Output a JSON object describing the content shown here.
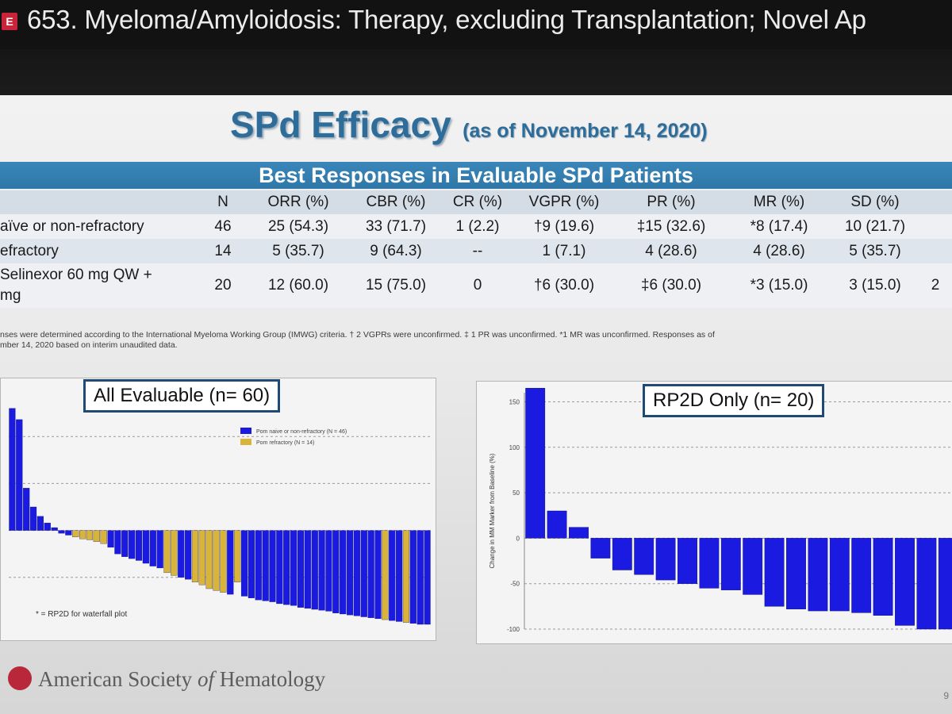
{
  "window": {
    "badge": "E",
    "title": "653. Myeloma/Amyloidosis: Therapy, excluding Transplantation; Novel Ap"
  },
  "slide": {
    "title": "SPd Efficacy",
    "subtitle": "(as of November 14, 2020)",
    "table_title": "Best Responses in Evaluable SPd Patients",
    "columns": [
      "N",
      "ORR (%)",
      "CBR (%)",
      "CR (%)",
      "VGPR (%)",
      "PR (%)",
      "MR (%)",
      "SD (%)"
    ],
    "rows": [
      {
        "label": "aïve or non-refractory",
        "label2": "",
        "cells": [
          "46",
          "25 (54.3)",
          "33 (71.7)",
          "1 (2.2)",
          "†9 (19.6)",
          "‡15 (32.6)",
          "*8 (17.4)",
          "10 (21.7)"
        ]
      },
      {
        "label": "efractory",
        "label2": "",
        "cells": [
          "14",
          "5 (35.7)",
          "9 (64.3)",
          "--",
          "1 (7.1)",
          "4 (28.6)",
          "4 (28.6)",
          "5 (35.7)"
        ]
      },
      {
        "label": "Selinexor 60 mg QW +",
        "label2": "mg",
        "cells": [
          "20",
          "12 (60.0)",
          "15 (75.0)",
          "0",
          "†6 (30.0)",
          "‡6 (30.0)",
          "*3 (15.0)",
          "3 (15.0)"
        ]
      }
    ],
    "extra_col_marks": [
      "",
      "",
      "2"
    ],
    "footnote_1": "nses were determined according to the International Myeloma Working Group (IMWG) criteria. † 2 VGPRs were unconfirmed. ‡ 1 PR was unconfirmed. *1 MR was unconfirmed. Responses as of",
    "footnote_2": "mber 14, 2020 based on interim unaudited data.",
    "callout_left": "All Evaluable (n= 60)",
    "callout_right": "RP2D Only (n= 20)",
    "legend_naive": "Pom naive or non-refractory (N = 46)",
    "legend_refractory": "Pom refractory (N = 14)",
    "rp2d_note": "* = RP2D for waterfall plot",
    "right_ylabel": "Change in MM Marker from Baseline (%)",
    "right_yticks": [
      "150",
      "100",
      "50",
      "0",
      "-50",
      "-100"
    ],
    "org": {
      "part1": "American Society ",
      "part2": "of",
      "part3": " Hematology"
    },
    "page_number": "9"
  },
  "colors": {
    "naive": "#1a1ae0",
    "refractory": "#d9b43a",
    "accent": "#2e6d9a"
  },
  "chart_data": [
    {
      "type": "bar",
      "title": "All Evaluable (n= 60)",
      "ylabel": "",
      "ylim": [
        -100,
        150
      ],
      "series": [
        {
          "name": "Pom naive or non-refractory (N = 46)",
          "values": []
        },
        {
          "name": "Pom refractory (N = 14)",
          "values": []
        }
      ],
      "bars": [
        {
          "v": 130,
          "g": 0
        },
        {
          "v": 118,
          "g": 0
        },
        {
          "v": 45,
          "g": 0
        },
        {
          "v": 25,
          "g": 0
        },
        {
          "v": 15,
          "g": 0
        },
        {
          "v": 8,
          "g": 0
        },
        {
          "v": 3,
          "g": 0
        },
        {
          "v": -3,
          "g": 0
        },
        {
          "v": -5,
          "g": 0
        },
        {
          "v": -7,
          "g": 1
        },
        {
          "v": -9,
          "g": 1
        },
        {
          "v": -10,
          "g": 1
        },
        {
          "v": -12,
          "g": 1
        },
        {
          "v": -14,
          "g": 1
        },
        {
          "v": -18,
          "g": 0
        },
        {
          "v": -25,
          "g": 0
        },
        {
          "v": -28,
          "g": 0
        },
        {
          "v": -30,
          "g": 0
        },
        {
          "v": -32,
          "g": 0
        },
        {
          "v": -35,
          "g": 0
        },
        {
          "v": -38,
          "g": 0
        },
        {
          "v": -40,
          "g": 0
        },
        {
          "v": -45,
          "g": 1
        },
        {
          "v": -48,
          "g": 1
        },
        {
          "v": -50,
          "g": 0
        },
        {
          "v": -52,
          "g": 0
        },
        {
          "v": -55,
          "g": 1
        },
        {
          "v": -58,
          "g": 1
        },
        {
          "v": -62,
          "g": 1
        },
        {
          "v": -64,
          "g": 1
        },
        {
          "v": -66,
          "g": 1
        },
        {
          "v": -68,
          "g": 0
        },
        {
          "v": -55,
          "g": 1
        },
        {
          "v": -70,
          "g": 0
        },
        {
          "v": -72,
          "g": 0
        },
        {
          "v": -74,
          "g": 0
        },
        {
          "v": -75,
          "g": 0
        },
        {
          "v": -76,
          "g": 0
        },
        {
          "v": -78,
          "g": 0
        },
        {
          "v": -79,
          "g": 0
        },
        {
          "v": -80,
          "g": 0
        },
        {
          "v": -82,
          "g": 0
        },
        {
          "v": -83,
          "g": 0
        },
        {
          "v": -84,
          "g": 0
        },
        {
          "v": -85,
          "g": 0
        },
        {
          "v": -86,
          "g": 0
        },
        {
          "v": -88,
          "g": 0
        },
        {
          "v": -89,
          "g": 0
        },
        {
          "v": -90,
          "g": 0
        },
        {
          "v": -91,
          "g": 0
        },
        {
          "v": -92,
          "g": 0
        },
        {
          "v": -93,
          "g": 0
        },
        {
          "v": -94,
          "g": 0
        },
        {
          "v": -95,
          "g": 1
        },
        {
          "v": -96,
          "g": 0
        },
        {
          "v": -97,
          "g": 0
        },
        {
          "v": -98,
          "g": 1
        },
        {
          "v": -99,
          "g": 0
        },
        {
          "v": -100,
          "g": 0
        },
        {
          "v": -100,
          "g": 0
        }
      ]
    },
    {
      "type": "bar",
      "title": "RP2D Only (n= 20)",
      "ylabel": "Change in MM Marker from Baseline (%)",
      "ylim": [
        -100,
        160
      ],
      "yticks": [
        150,
        100,
        50,
        0,
        -50,
        -100
      ],
      "values": [
        165,
        30,
        12,
        -22,
        -35,
        -40,
        -46,
        -50,
        -55,
        -57,
        -62,
        -75,
        -78,
        -80,
        -80,
        -82,
        -85,
        -96,
        -100,
        -100
      ]
    }
  ]
}
